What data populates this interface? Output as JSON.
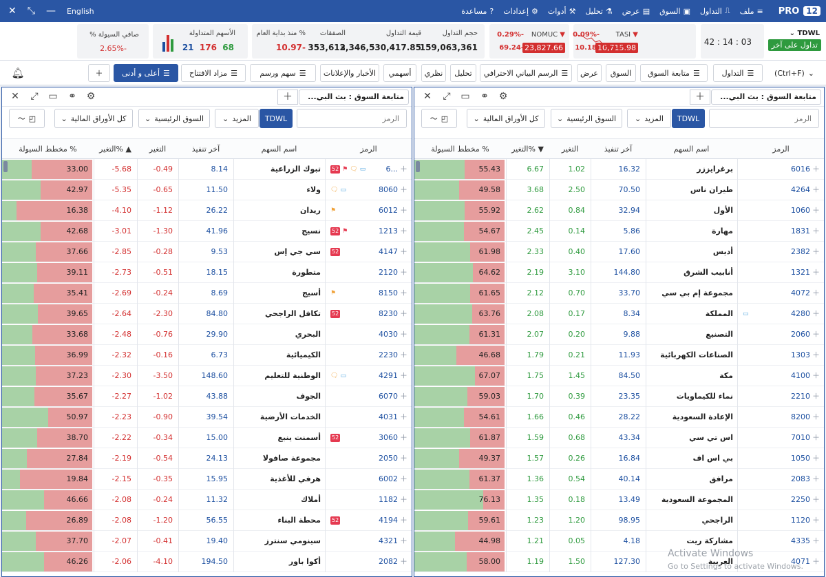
{
  "topbar": {
    "pro": "PRO",
    "pro_num": "12",
    "menu": [
      "ملف",
      "التداول",
      "السوق",
      "عرض",
      "تحليل",
      "أدوات",
      "إعدادات",
      "مساعدة"
    ],
    "lang": "English"
  },
  "quotes": {
    "symbol": "TDWL",
    "status": "تداول على آخر",
    "time": "03 : 14 : 42",
    "tasi": {
      "name": "TASI",
      "pct": "-0.09%",
      "chg": "-10.18",
      "value": "10,715.98"
    },
    "nomuc": {
      "name": "NOMUC",
      "pct": "-0.29%",
      "chg": "-69.24",
      "value": "23,827.66"
    },
    "stats": {
      "volume_label": "حجم التداول",
      "volume": "159,063,361",
      "value_label": "قيمة التداول",
      "value": "3,346,530,417.85",
      "deals_label": "الصفقات",
      "deals": "353,612",
      "ytd_label": "% منذ بداية العام",
      "ytd": "-10.97"
    },
    "traded": {
      "label": "الأسهم المتداولة",
      "up": "68",
      "down": "176",
      "flat": "21"
    },
    "net_liq": {
      "label": "صافي السيولة %",
      "value": "-2.65%"
    }
  },
  "toolbar": {
    "buttons": [
      "التداول",
      "متابعة السوق",
      "السوق",
      "عرض",
      "الرسم البياني الاحترافي",
      "تحليل",
      "نظري",
      "أسهمي",
      "الأخبار والإعلانات",
      "سهم ورسم",
      "مزاد الافتتاح",
      "أعلى و أدنى"
    ],
    "search": "(Ctrl+F)"
  },
  "panel": {
    "title": "متابعة السوق : بث البي...",
    "search_placeholder": "الرمز",
    "market": "TDWL",
    "more": "المزيد",
    "main_market": "السوق الرئيسية",
    "all_securities": "كل الأوراق المالية",
    "headers": {
      "symbol": "الرمز",
      "name": "اسم السهم",
      "last": "آخر تنفيذ",
      "change": "التغير",
      "change_pct_asc": "التغير% ▲",
      "change_pct_desc": "التغير% ▼",
      "liquidity": "مخطط السيولة %"
    }
  },
  "left_rows": [
    {
      "symbol": "6...",
      "name": "تبوك الزراعية",
      "last": "8.14",
      "chg": "-0.49",
      "pct": "-5.68",
      "liq": "33.00",
      "flags": [
        "52",
        "flag",
        "chat",
        "cmt"
      ]
    },
    {
      "symbol": "8060",
      "name": "ولاء",
      "last": "11.50",
      "chg": "-0.65",
      "pct": "-5.35",
      "liq": "42.97",
      "flags": [
        "chat",
        "cmt"
      ]
    },
    {
      "symbol": "6012",
      "name": "ريدان",
      "last": "26.22",
      "chg": "-1.12",
      "pct": "-4.10",
      "liq": "16.38",
      "flags": [
        "flag"
      ]
    },
    {
      "symbol": "1213",
      "name": "نسيج",
      "last": "41.96",
      "chg": "-1.30",
      "pct": "-3.01",
      "liq": "42.68",
      "flags": [
        "52",
        "flag"
      ]
    },
    {
      "symbol": "4147",
      "name": "سي جي إس",
      "last": "9.53",
      "chg": "-0.28",
      "pct": "-2.85",
      "liq": "37.66",
      "flags": [
        "52"
      ]
    },
    {
      "symbol": "2120",
      "name": "متطورة",
      "last": "18.15",
      "chg": "-0.51",
      "pct": "-2.73",
      "liq": "39.11",
      "flags": []
    },
    {
      "symbol": "8150",
      "name": "أسيج",
      "last": "8.69",
      "chg": "-0.24",
      "pct": "-2.69",
      "liq": "35.41",
      "flags": [
        "flag"
      ]
    },
    {
      "symbol": "8230",
      "name": "تكافل الراجحي",
      "last": "84.80",
      "chg": "-2.30",
      "pct": "-2.64",
      "liq": "39.65",
      "flags": [
        "52"
      ]
    },
    {
      "symbol": "4030",
      "name": "البحري",
      "last": "29.90",
      "chg": "-0.76",
      "pct": "-2.48",
      "liq": "33.68",
      "flags": []
    },
    {
      "symbol": "2230",
      "name": "الكيميائية",
      "last": "6.73",
      "chg": "-0.16",
      "pct": "-2.32",
      "liq": "36.99",
      "flags": []
    },
    {
      "symbol": "4291",
      "name": "الوطنية للتعليم",
      "last": "148.60",
      "chg": "-3.50",
      "pct": "-2.30",
      "liq": "37.23",
      "flags": [
        "chat",
        "cmt"
      ]
    },
    {
      "symbol": "6070",
      "name": "الجوف",
      "last": "43.88",
      "chg": "-1.02",
      "pct": "-2.27",
      "liq": "35.67",
      "flags": []
    },
    {
      "symbol": "4031",
      "name": "الخدمات الأرضية",
      "last": "39.54",
      "chg": "-0.90",
      "pct": "-2.23",
      "liq": "50.97",
      "flags": []
    },
    {
      "symbol": "3060",
      "name": "أسمنت ينبع",
      "last": "15.00",
      "chg": "-0.34",
      "pct": "-2.22",
      "liq": "38.70",
      "flags": [
        "52"
      ]
    },
    {
      "symbol": "2050",
      "name": "مجموعة صافولا",
      "last": "24.13",
      "chg": "-0.54",
      "pct": "-2.19",
      "liq": "27.84",
      "flags": []
    },
    {
      "symbol": "6002",
      "name": "هرفي للأغذية",
      "last": "15.95",
      "chg": "-0.35",
      "pct": "-2.15",
      "liq": "19.84",
      "flags": []
    },
    {
      "symbol": "1182",
      "name": "أملاك",
      "last": "11.32",
      "chg": "-0.24",
      "pct": "-2.08",
      "liq": "46.66",
      "flags": []
    },
    {
      "symbol": "4194",
      "name": "محطة البناء",
      "last": "56.55",
      "chg": "-1.20",
      "pct": "-2.08",
      "liq": "26.89",
      "flags": [
        "52"
      ]
    },
    {
      "symbol": "4321",
      "name": "سينومي سنترز",
      "last": "19.40",
      "chg": "-0.41",
      "pct": "-2.07",
      "liq": "37.70",
      "flags": []
    },
    {
      "symbol": "2082",
      "name": "أكوا باور",
      "last": "194.50",
      "chg": "-4.10",
      "pct": "-2.06",
      "liq": "46.26",
      "flags": []
    }
  ],
  "right_rows": [
    {
      "symbol": "6016",
      "name": "برغرايززر",
      "last": "16.32",
      "chg": "1.02",
      "pct": "6.67",
      "liq": "55.43",
      "flags": []
    },
    {
      "symbol": "4264",
      "name": "طيران ناس",
      "last": "70.50",
      "chg": "2.50",
      "pct": "3.68",
      "liq": "49.58",
      "flags": []
    },
    {
      "symbol": "1060",
      "name": "الأول",
      "last": "32.94",
      "chg": "0.84",
      "pct": "2.62",
      "liq": "55.92",
      "flags": []
    },
    {
      "symbol": "1831",
      "name": "مهارة",
      "last": "5.86",
      "chg": "0.14",
      "pct": "2.45",
      "liq": "54.67",
      "flags": []
    },
    {
      "symbol": "2382",
      "name": "أديس",
      "last": "17.60",
      "chg": "0.40",
      "pct": "2.33",
      "liq": "61.98",
      "flags": []
    },
    {
      "symbol": "1321",
      "name": "أنابيب الشرق",
      "last": "144.80",
      "chg": "3.10",
      "pct": "2.19",
      "liq": "64.62",
      "flags": []
    },
    {
      "symbol": "4072",
      "name": "مجموعة إم بي سي",
      "last": "33.70",
      "chg": "0.70",
      "pct": "2.12",
      "liq": "61.65",
      "flags": []
    },
    {
      "symbol": "4280",
      "name": "المملكة",
      "last": "8.34",
      "chg": "0.17",
      "pct": "2.08",
      "liq": "63.76",
      "flags": [
        "cmt"
      ]
    },
    {
      "symbol": "2060",
      "name": "التصنيع",
      "last": "9.88",
      "chg": "0.20",
      "pct": "2.07",
      "liq": "61.31",
      "flags": []
    },
    {
      "symbol": "1303",
      "name": "الصناعات الكهربائية",
      "last": "11.93",
      "chg": "0.21",
      "pct": "1.79",
      "liq": "46.68",
      "flags": []
    },
    {
      "symbol": "4100",
      "name": "مكة",
      "last": "84.50",
      "chg": "1.45",
      "pct": "1.75",
      "liq": "67.07",
      "flags": []
    },
    {
      "symbol": "2210",
      "name": "نماء للكيماويات",
      "last": "23.35",
      "chg": "0.39",
      "pct": "1.70",
      "liq": "59.03",
      "flags": []
    },
    {
      "symbol": "8200",
      "name": "الإعادة السعودية",
      "last": "28.22",
      "chg": "0.46",
      "pct": "1.66",
      "liq": "54.61",
      "flags": []
    },
    {
      "symbol": "7010",
      "name": "اس تي سي",
      "last": "43.34",
      "chg": "0.68",
      "pct": "1.59",
      "liq": "61.87",
      "flags": []
    },
    {
      "symbol": "1050",
      "name": "بي اس اف",
      "last": "16.84",
      "chg": "0.26",
      "pct": "1.57",
      "liq": "49.37",
      "flags": []
    },
    {
      "symbol": "2083",
      "name": "مرافق",
      "last": "40.14",
      "chg": "0.54",
      "pct": "1.36",
      "liq": "61.37",
      "flags": []
    },
    {
      "symbol": "2250",
      "name": "المجموعة السعودية",
      "last": "13.49",
      "chg": "0.18",
      "pct": "1.35",
      "liq": "76.13",
      "flags": []
    },
    {
      "symbol": "1120",
      "name": "الراجحي",
      "last": "98.95",
      "chg": "1.20",
      "pct": "1.23",
      "liq": "59.61",
      "flags": []
    },
    {
      "symbol": "4335",
      "name": "مشاركة ريت",
      "last": "4.18",
      "chg": "0.05",
      "pct": "1.21",
      "liq": "44.98",
      "flags": []
    },
    {
      "symbol": "4071",
      "name": "العربية",
      "last": "127.30",
      "chg": "1.50",
      "pct": "1.19",
      "liq": "58.00",
      "flags": []
    }
  ],
  "watermark": {
    "line1": "Activate Windows",
    "line2": "Go to Settings to activate Windows."
  }
}
